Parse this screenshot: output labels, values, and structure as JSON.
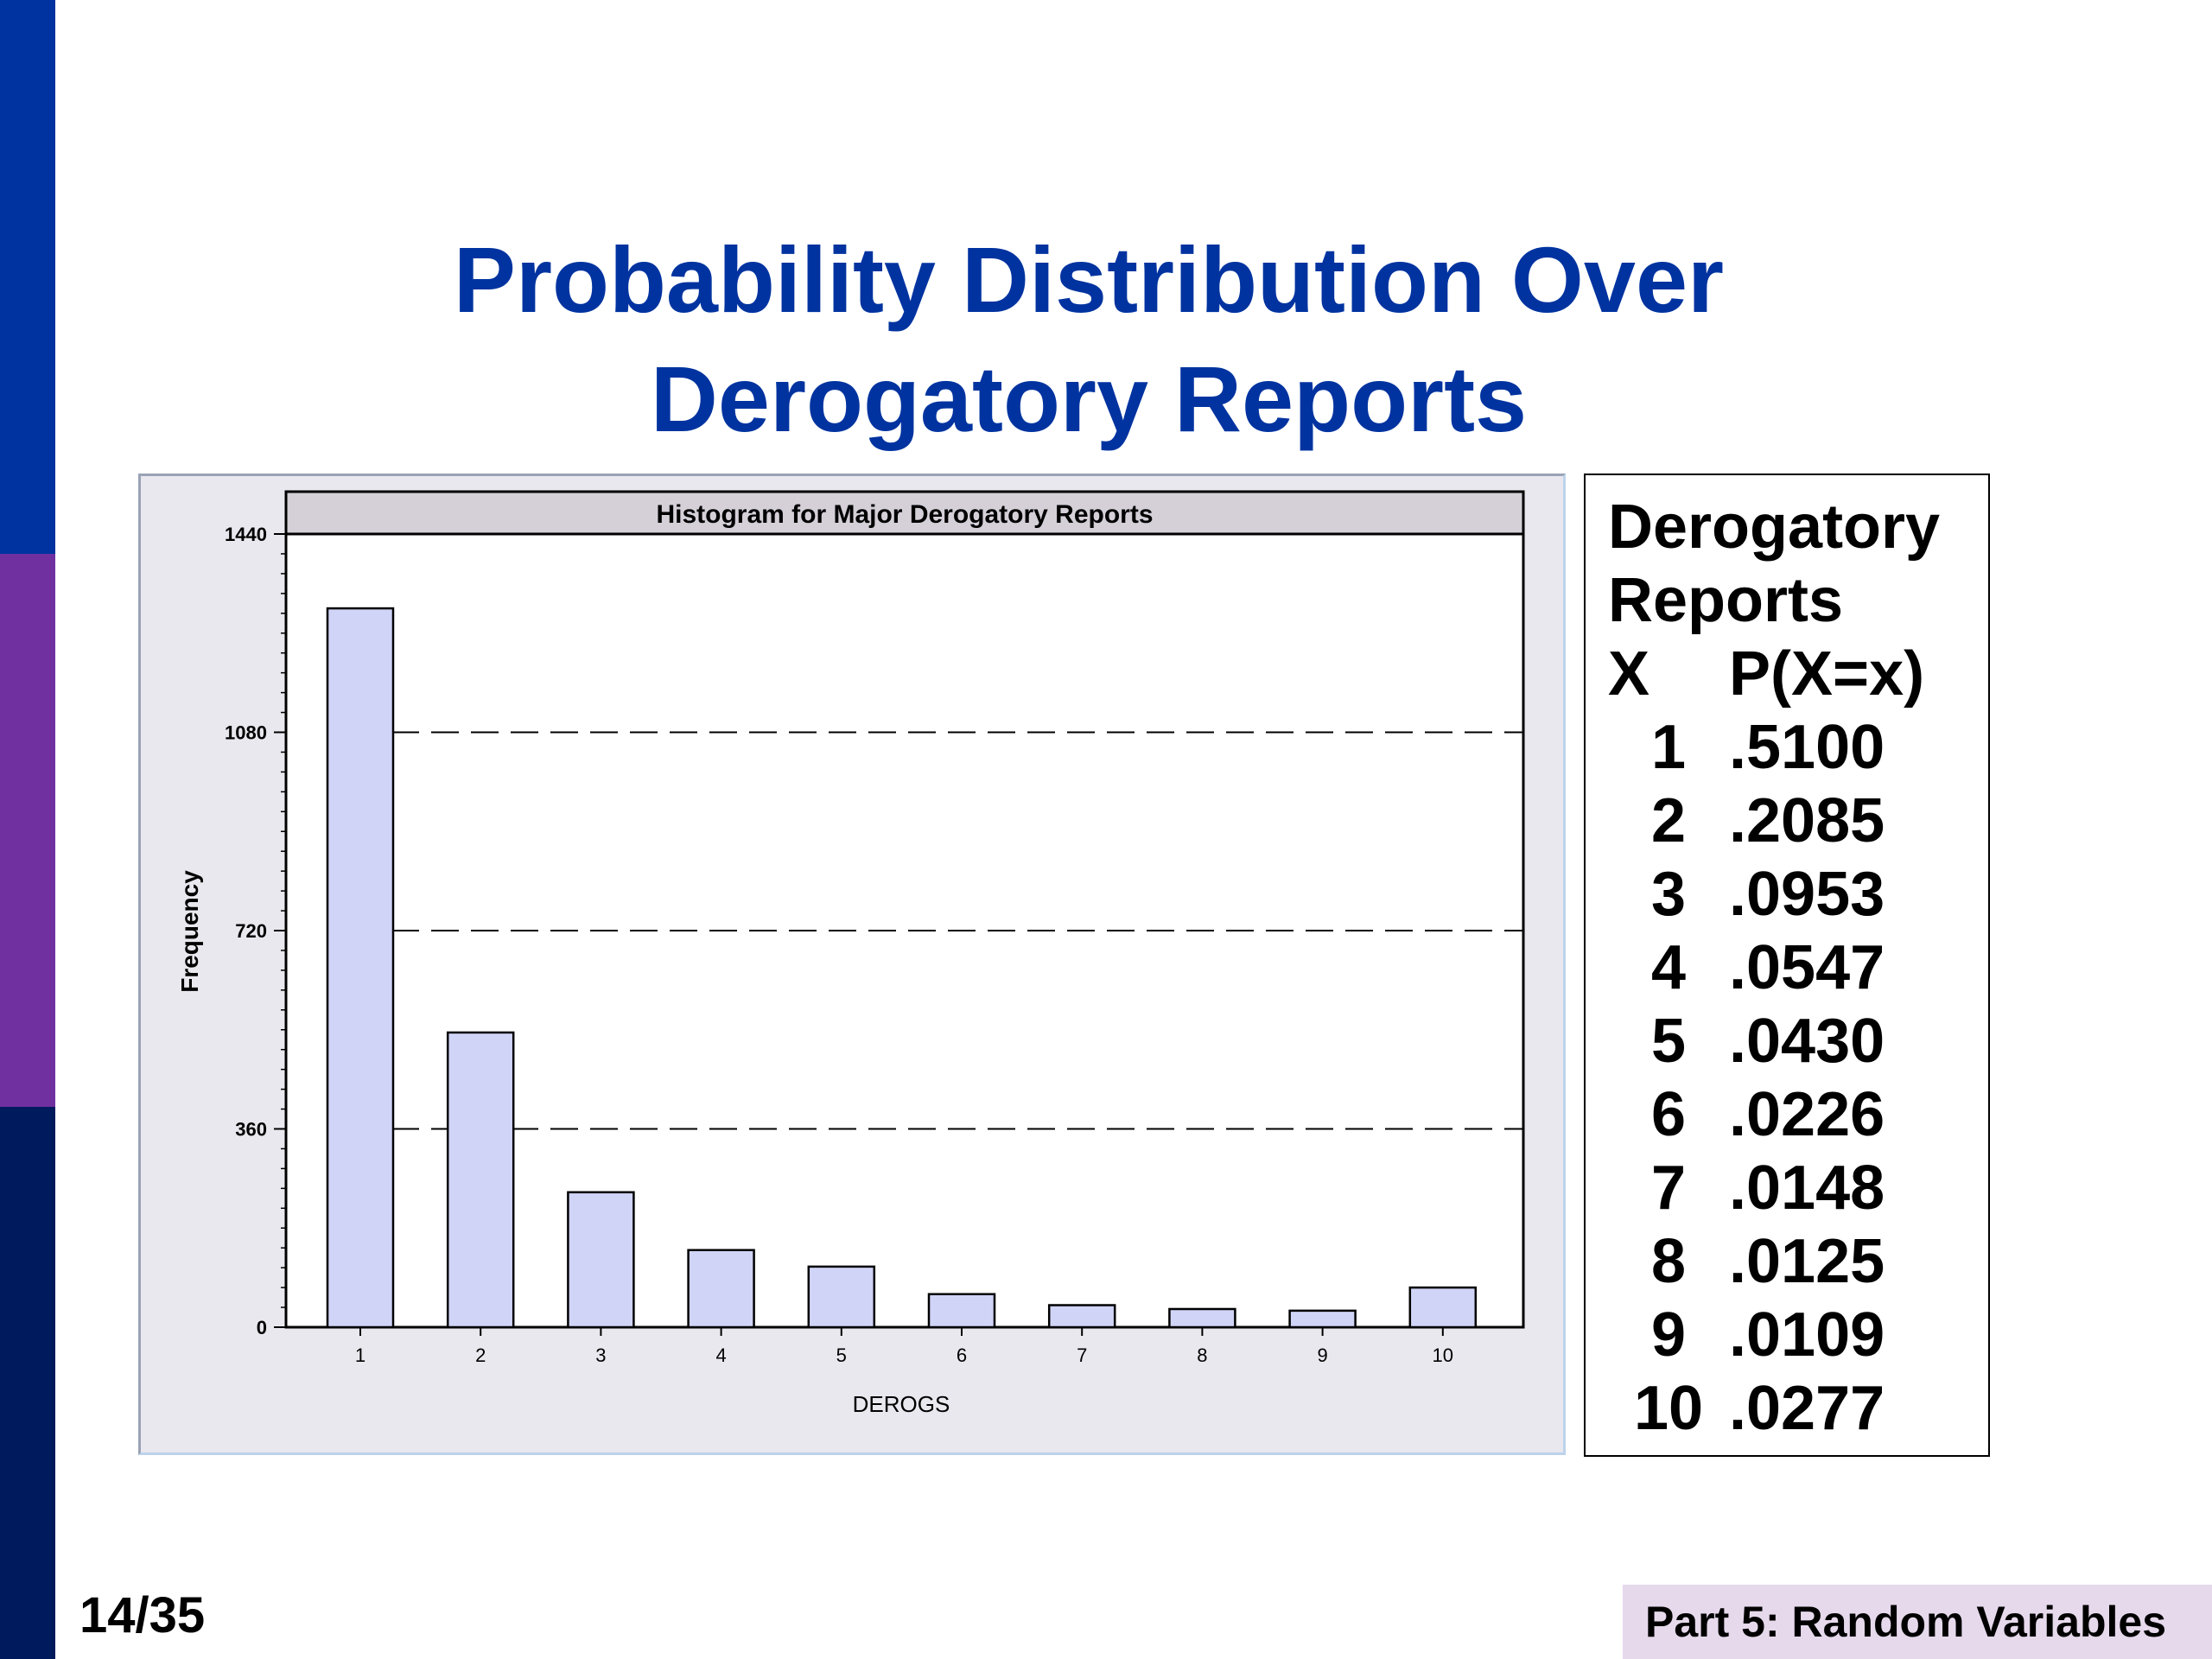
{
  "slide": {
    "title_line1": "Probability Distribution Over",
    "title_line2": "Derogatory Reports",
    "page_number": "14/35",
    "footer": "Part 5: Random Variables"
  },
  "colors": {
    "accent_blue": "#0033a0",
    "accent_purple": "#7030a0",
    "accent_navy": "#001a5e",
    "bar_fill": "#d0d4f7",
    "chart_header": "#d5cfd8",
    "footer_bg": "#e6d9ec"
  },
  "table": {
    "title_line1": "Derogatory",
    "title_line2": "Reports",
    "header_x": "X",
    "header_p": "P(X=x)",
    "rows": [
      {
        "x": "1",
        "p": ".5100"
      },
      {
        "x": "2",
        "p": ".2085"
      },
      {
        "x": "3",
        "p": ".0953"
      },
      {
        "x": "4",
        "p": ".0547"
      },
      {
        "x": "5",
        "p": ".0430"
      },
      {
        "x": "6",
        "p": ".0226"
      },
      {
        "x": "7",
        "p": ".0148"
      },
      {
        "x": "8",
        "p": ".0125"
      },
      {
        "x": "9",
        "p": ".0109"
      },
      {
        "x": "10",
        "p": ".0277"
      }
    ]
  },
  "chart_data": {
    "type": "bar",
    "title": "Histogram for Major Derogatory Reports",
    "xlabel": "DEROGS",
    "ylabel": "Frequency",
    "categories": [
      "1",
      "2",
      "3",
      "4",
      "5",
      "6",
      "7",
      "8",
      "9",
      "10"
    ],
    "values": [
      1305,
      535,
      245,
      140,
      110,
      60,
      40,
      33,
      30,
      72
    ],
    "ylim": [
      0,
      1440
    ],
    "yticks": [
      0,
      360,
      720,
      1080,
      1440
    ],
    "ytick_labels": [
      "0",
      "360",
      "720",
      "1080",
      "1440"
    ],
    "grid": "horizontal dashed at 360, 720, 1080"
  }
}
